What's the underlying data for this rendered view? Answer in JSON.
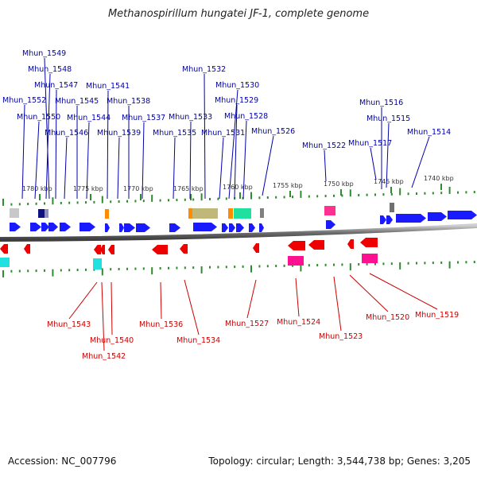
{
  "title": "Methanospirillum hungatei JF-1, complete genome",
  "footer": {
    "accession": "Accession: NC_007796",
    "summary": "Topology: circular; Length: 3,544,738 bp; Genes: 3,205"
  },
  "colors": {
    "forward_strand": "#1a1aff",
    "reverse_strand": "#ee0000",
    "top_label": "#0000aa",
    "bottom_label": "#cc0000",
    "tick": "#2e8b2e",
    "backbone": "#777777"
  },
  "scale": {
    "unit": "kbp",
    "labels": [
      "1780 kbp",
      "1775 kbp",
      "1770 kbp",
      "1765 kbp",
      "1760 kbp",
      "1755 kbp",
      "1750 kbp",
      "1745 kbp",
      "1740 kbp"
    ]
  },
  "top_genes": [
    "Mhun_1549",
    "Mhun_1548",
    "Mhun_1547",
    "Mhun_1552",
    "Mhun_1545",
    "Mhun_1550",
    "Mhun_1544",
    "Mhun_1546",
    "Mhun_1541",
    "Mhun_1538",
    "Mhun_1539",
    "Mhun_1537",
    "Mhun_1532",
    "Mhun_1530",
    "Mhun_1529",
    "Mhun_1533",
    "Mhun_1528",
    "Mhun_1535",
    "Mhun_1531",
    "Mhun_1526",
    "Mhun_1522",
    "Mhun_1516",
    "Mhun_1515",
    "Mhun_1517",
    "Mhun_1514"
  ],
  "bottom_genes": [
    "Mhun_1543",
    "Mhun_1540",
    "Mhun_1542",
    "Mhun_1536",
    "Mhun_1534",
    "Mhun_1527",
    "Mhun_1524",
    "Mhun_1523",
    "Mhun_1520",
    "Mhun_1519"
  ]
}
